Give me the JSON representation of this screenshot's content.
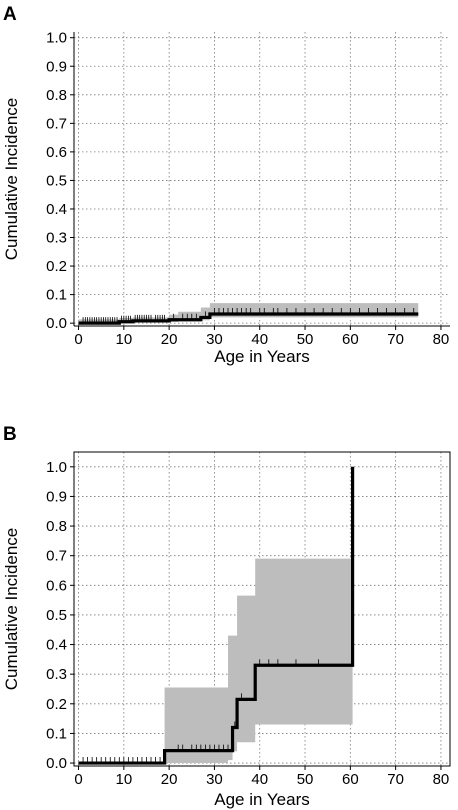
{
  "chart_data": [
    {
      "panel": "A",
      "type": "line",
      "xlabel": "Age in Years",
      "ylabel": "Cumulative Incidence",
      "xlim": [
        0,
        80
      ],
      "ylim": [
        0,
        1.0
      ],
      "xticks": [
        "0",
        "10",
        "20",
        "30",
        "40",
        "50",
        "60",
        "70",
        "80"
      ],
      "yticks": [
        "0.0",
        "0.1",
        "0.2",
        "0.3",
        "0.4",
        "0.5",
        "0.6",
        "0.7",
        "0.8",
        "0.9",
        "1.0"
      ],
      "grid": true,
      "series": [
        {
          "kind": "step",
          "x": [
            0,
            9,
            12,
            20,
            27,
            29,
            75
          ],
          "y": [
            0.0,
            0.005,
            0.008,
            0.012,
            0.02,
            0.032,
            0.032
          ]
        }
      ],
      "ci_band": {
        "x": [
          0,
          9,
          12,
          20,
          22,
          27,
          29,
          75
        ],
        "upper": [
          0.013,
          0.018,
          0.02,
          0.03,
          0.04,
          0.055,
          0.07,
          0.07
        ],
        "lower": [
          0.0,
          0.0,
          0.002,
          0.004,
          0.006,
          0.01,
          0.02,
          0.02
        ]
      },
      "censor_ticks": [
        1,
        1.5,
        2,
        2.5,
        3,
        3.5,
        4,
        4.5,
        5,
        5.5,
        6,
        6.5,
        7,
        7.5,
        8,
        8.5,
        9.5,
        10,
        10.5,
        11,
        11.5,
        12.5,
        13,
        13.5,
        14,
        14.5,
        15,
        15.5,
        16,
        17,
        17.5,
        18,
        18.5,
        19,
        21,
        23,
        24,
        25,
        26,
        28,
        30,
        31,
        32,
        33,
        34,
        35,
        36,
        37,
        38,
        40,
        41,
        43,
        44,
        46,
        48,
        50,
        52,
        54,
        56,
        58,
        60,
        62,
        64,
        66,
        68,
        70,
        72,
        74
      ]
    },
    {
      "panel": "B",
      "type": "line",
      "xlabel": "Age in Years",
      "ylabel": "Cumulative Incidence",
      "xlim": [
        0,
        80
      ],
      "ylim": [
        0,
        1.0
      ],
      "xticks": [
        "0",
        "10",
        "20",
        "30",
        "40",
        "50",
        "60",
        "70",
        "80"
      ],
      "yticks": [
        "0.0",
        "0.1",
        "0.2",
        "0.3",
        "0.4",
        "0.5",
        "0.6",
        "0.7",
        "0.8",
        "0.9",
        "1.0"
      ],
      "grid": true,
      "series": [
        {
          "kind": "step",
          "x": [
            0,
            19,
            34,
            35,
            39,
            60.5,
            60.5
          ],
          "y": [
            0.0,
            0.042,
            0.12,
            0.215,
            0.33,
            0.33,
            1.0
          ]
        }
      ],
      "ci_band": {
        "x": [
          0,
          19,
          33,
          34,
          35,
          37,
          39,
          60.5
        ],
        "upper": [
          0.0,
          0.255,
          0.43,
          0.43,
          0.565,
          0.565,
          0.69,
          0.69
        ],
        "lower": [
          0.0,
          0.0,
          0.01,
          0.04,
          0.07,
          0.07,
          0.13,
          0.13
        ]
      },
      "censor_ticks": [
        1,
        2,
        3,
        4,
        5,
        6,
        7,
        8,
        9,
        10,
        11,
        12,
        13,
        14,
        15,
        16,
        17,
        18,
        22,
        23,
        25,
        26,
        27,
        28,
        29,
        30,
        31,
        32,
        33,
        34.5,
        36,
        40,
        42,
        44,
        48,
        53
      ]
    }
  ]
}
